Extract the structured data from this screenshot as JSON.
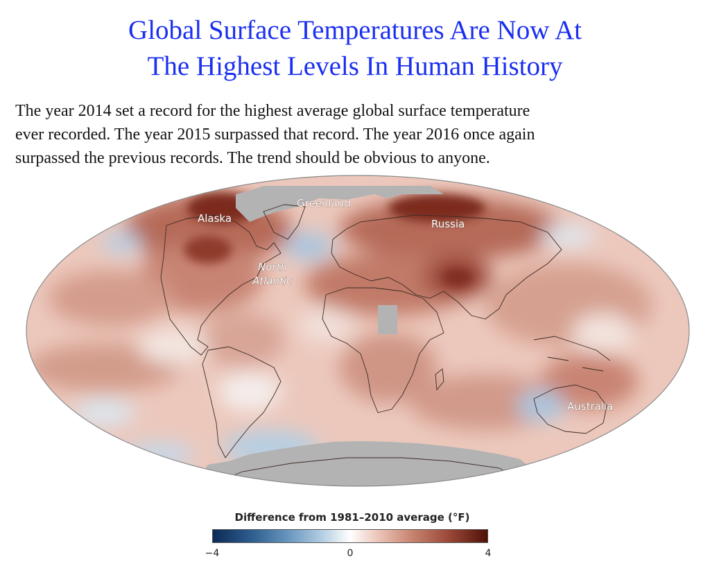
{
  "title": {
    "line1": "Global Surface Temperatures Are Now At",
    "line2": "The Highest Levels In Human History"
  },
  "body": {
    "line1": "The year 2014 set a record for the highest average global surface temperature",
    "line2": "ever recorded. The year 2015 surpassed that record. The year 2016 once again",
    "line3": "surpassed the previous records. The trend should be obvious to anyone."
  },
  "map": {
    "labels": {
      "alaska": "Alaska",
      "greenland": "Greenland",
      "russia": "Russia",
      "north": "North",
      "atlantic": "Atlantic",
      "australia": "Australia"
    },
    "colors": {
      "warm_light": "#e7b9aa",
      "warm_mid": "#c9806d",
      "warm_dark": "#7b2a1e",
      "cool": "#a9c6e0",
      "no_data": "#b3b3b3"
    }
  },
  "legend": {
    "title": "Difference from 1981–2010 average (°F)",
    "min_label": "−4",
    "mid_label": "0",
    "max_label": "4",
    "range": [
      -4,
      4
    ],
    "colors": [
      "#0c2a55",
      "#6b98c0",
      "#ffffff",
      "#c98672",
      "#4f1208"
    ]
  }
}
